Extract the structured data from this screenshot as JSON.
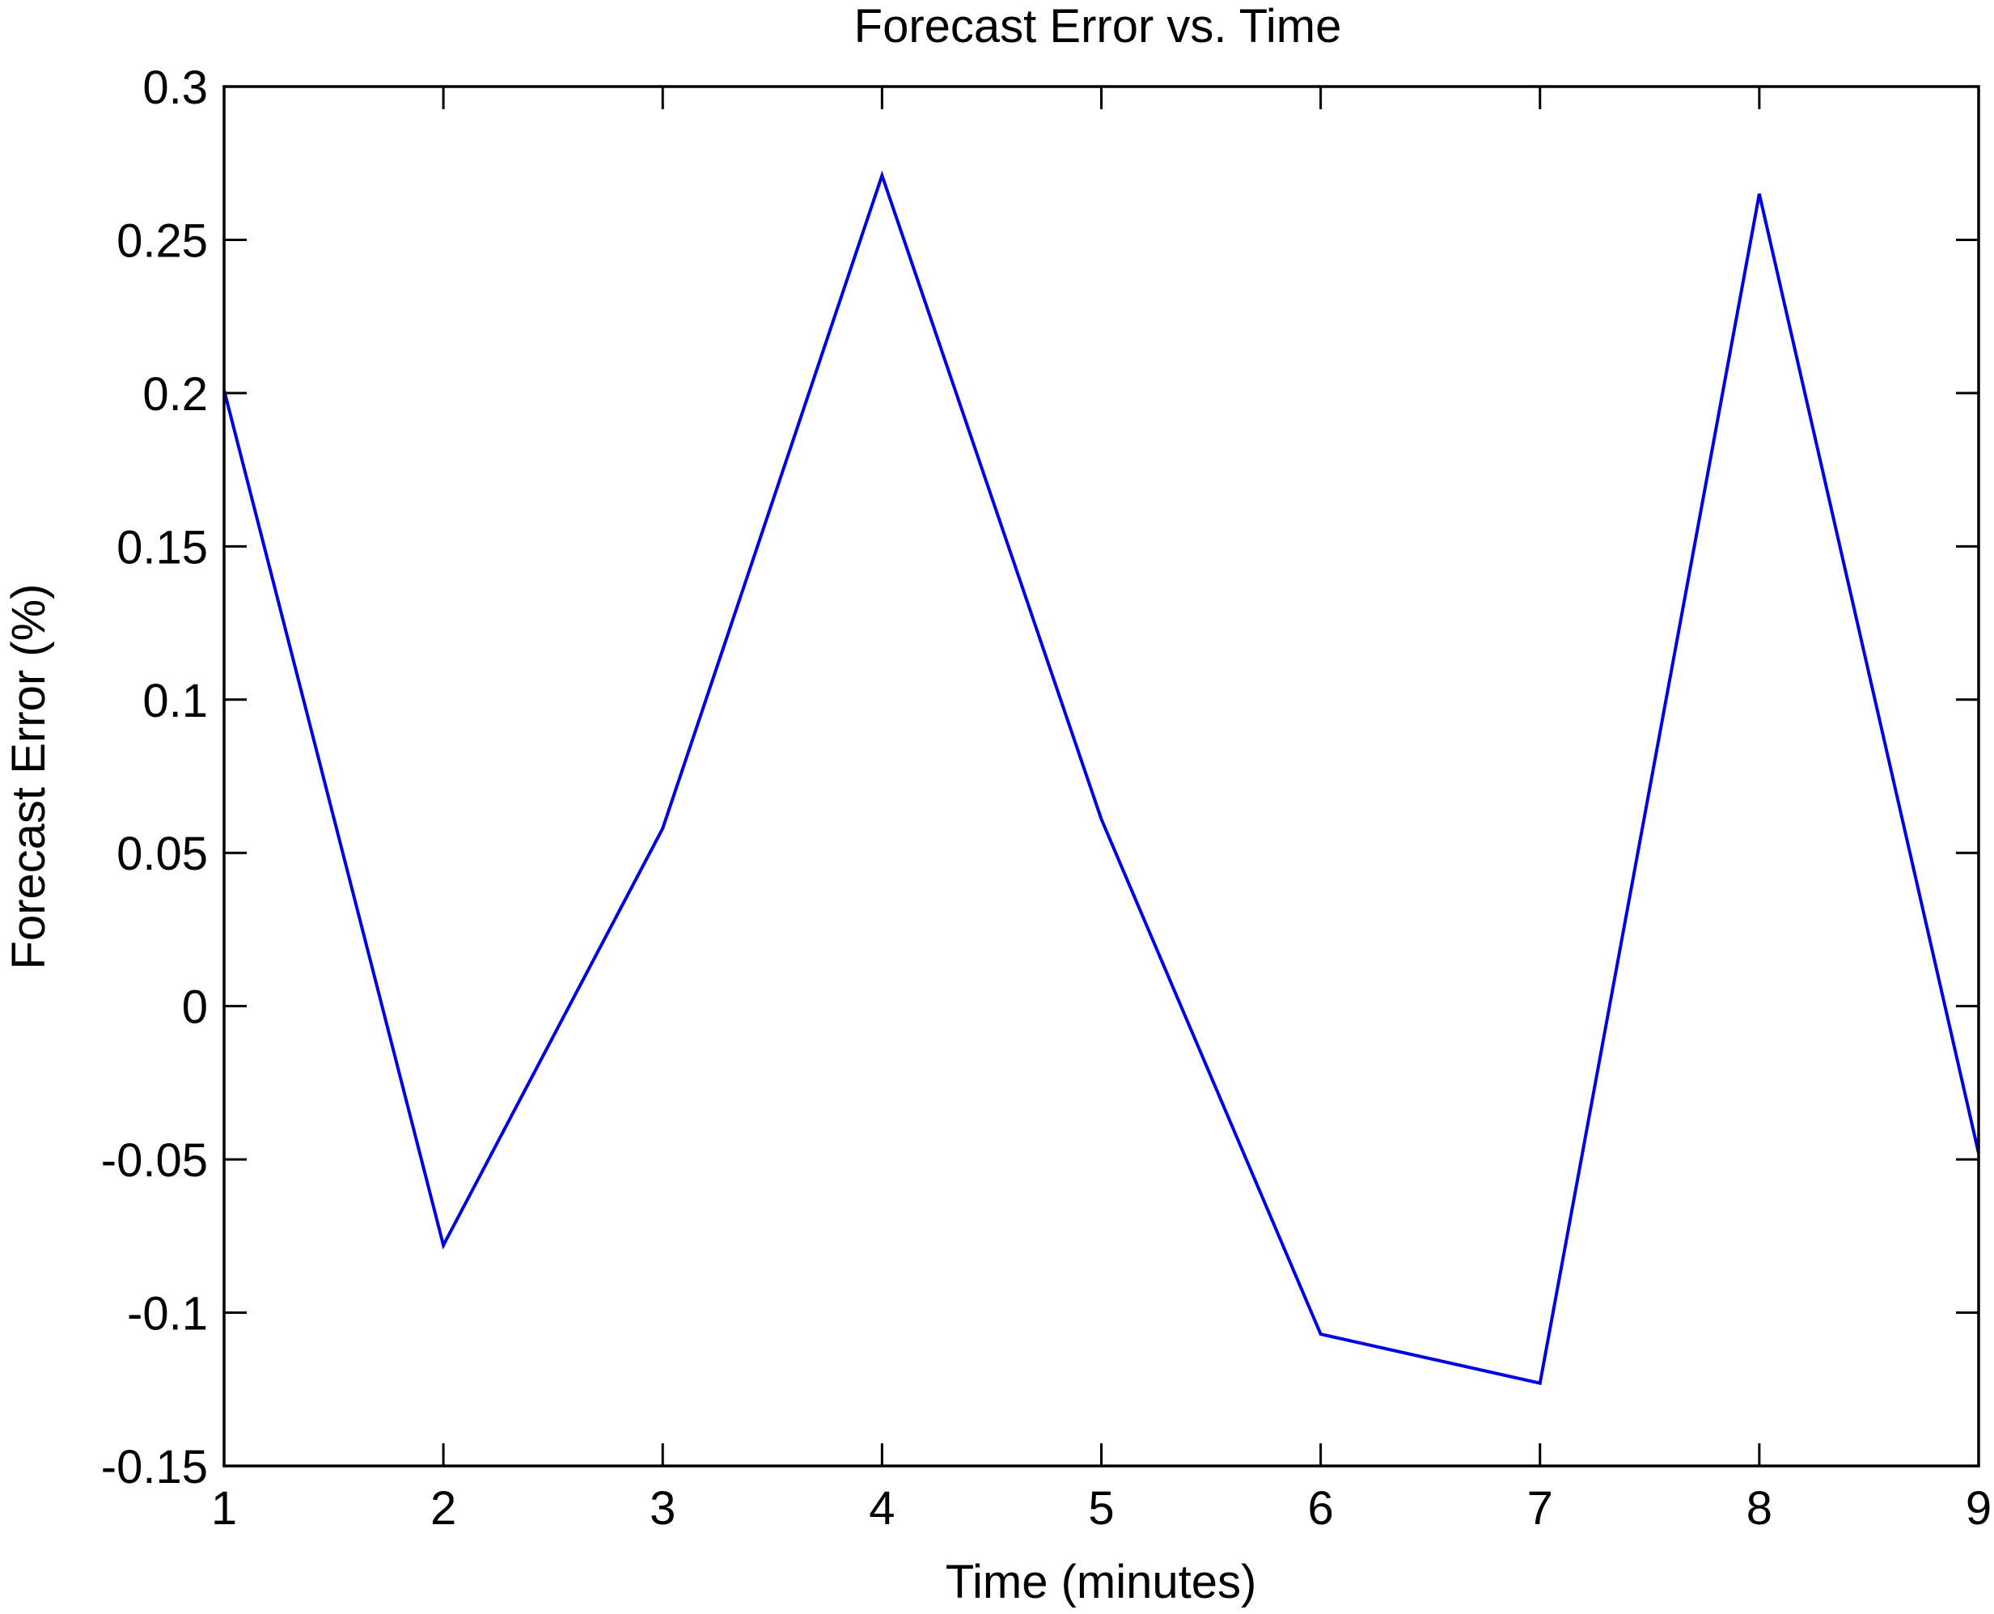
{
  "chart_data": {
    "type": "line",
    "title": "Forecast Error vs. Time",
    "xlabel": "Time (minutes)",
    "ylabel": "Forecast Error (%)",
    "xlim": [
      1,
      9
    ],
    "ylim": [
      -0.15,
      0.3
    ],
    "x_ticks": [
      1,
      2,
      3,
      4,
      5,
      6,
      7,
      8,
      9
    ],
    "x_tick_labels": [
      "1",
      "2",
      "3",
      "4",
      "5",
      "6",
      "7",
      "8",
      "9"
    ],
    "y_ticks": [
      -0.15,
      -0.1,
      -0.05,
      0,
      0.05,
      0.1,
      0.15,
      0.2,
      0.25,
      0.3
    ],
    "y_tick_labels": [
      "-0.15",
      "-0.1",
      "-0.05",
      "0",
      "0.05",
      "0.1",
      "0.15",
      "0.2",
      "0.25",
      "0.3"
    ],
    "grid": false,
    "legend": "none",
    "series": [
      {
        "color": "#0000e6",
        "x": [
          1,
          2,
          3,
          4,
          5,
          6,
          7,
          8,
          9
        ],
        "y": [
          0.201,
          -0.078,
          0.058,
          0.271,
          0.061,
          -0.107,
          -0.123,
          0.265,
          -0.048
        ]
      }
    ]
  }
}
